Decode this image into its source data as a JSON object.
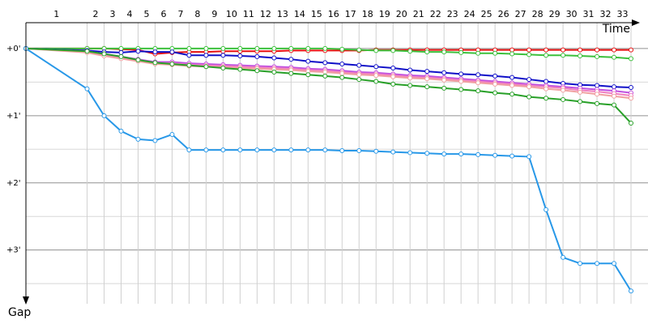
{
  "chart_data": {
    "type": "line",
    "x_label": "Time",
    "y_label": "Gap",
    "x": [
      0,
      3.6,
      4.6,
      5.6,
      6.6,
      7.6,
      8.6,
      9.6,
      10.6,
      11.6,
      12.6,
      13.6,
      14.6,
      15.6,
      16.6,
      17.6,
      18.6,
      19.6,
      20.6,
      21.6,
      22.6,
      23.6,
      24.6,
      25.6,
      26.6,
      27.6,
      28.6,
      29.6,
      30.6,
      31.6,
      32.6,
      33.6,
      34.6,
      35.6
    ],
    "xlim": [
      0,
      36.6
    ],
    "xticks": [
      {
        "value": 3.6,
        "label": "1"
      },
      {
        "value": 4.6,
        "label": "2"
      },
      {
        "value": 5.6,
        "label": "3"
      },
      {
        "value": 6.6,
        "label": "4"
      },
      {
        "value": 7.6,
        "label": "5"
      },
      {
        "value": 8.6,
        "label": "6"
      },
      {
        "value": 9.6,
        "label": "7"
      },
      {
        "value": 10.6,
        "label": "8"
      },
      {
        "value": 11.6,
        "label": "9"
      },
      {
        "value": 12.6,
        "label": "10"
      },
      {
        "value": 13.6,
        "label": "11"
      },
      {
        "value": 14.6,
        "label": "12"
      },
      {
        "value": 15.6,
        "label": "13"
      },
      {
        "value": 16.6,
        "label": "14"
      },
      {
        "value": 17.6,
        "label": "15"
      },
      {
        "value": 18.6,
        "label": "16"
      },
      {
        "value": 19.6,
        "label": "17"
      },
      {
        "value": 20.6,
        "label": "18"
      },
      {
        "value": 21.6,
        "label": "19"
      },
      {
        "value": 22.6,
        "label": "20"
      },
      {
        "value": 23.6,
        "label": "21"
      },
      {
        "value": 24.6,
        "label": "22"
      },
      {
        "value": 25.6,
        "label": "23"
      },
      {
        "value": 26.6,
        "label": "24"
      },
      {
        "value": 27.6,
        "label": "25"
      },
      {
        "value": 28.6,
        "label": "26"
      },
      {
        "value": 29.6,
        "label": "27"
      },
      {
        "value": 30.6,
        "label": "28"
      },
      {
        "value": 31.6,
        "label": "29"
      },
      {
        "value": 32.6,
        "label": "30"
      },
      {
        "value": 33.6,
        "label": "31"
      },
      {
        "value": 34.6,
        "label": "32"
      },
      {
        "value": 35.6,
        "label": "33"
      }
    ],
    "ylim": [
      -0.385,
      3.8
    ],
    "yticks": [
      {
        "value": 0,
        "label": "+0'"
      },
      {
        "value": 1,
        "label": "+1'"
      },
      {
        "value": 2,
        "label": "+2'"
      },
      {
        "value": 3,
        "label": "+3'"
      }
    ],
    "minor_yticks": [
      0.5,
      1.5,
      2.5,
      3.5
    ],
    "series": [
      {
        "color": "#e81010",
        "values": [
          0,
          0,
          0,
          0.01,
          0.02,
          0.08,
          0.06,
          0.05,
          0.05,
          0.04,
          0.04,
          0.04,
          0.04,
          0.03,
          0.03,
          0.03,
          0.03,
          0.03,
          0.02,
          0.02,
          0.02,
          0.02,
          0.02,
          0.02,
          0.02,
          0.02,
          0.02,
          0.02,
          0.02,
          0.02,
          0.02,
          0.02,
          0.02,
          0.02
        ]
      },
      {
        "color": "#3cc03c",
        "values": [
          0,
          0,
          0,
          0,
          0,
          0,
          0,
          0,
          0,
          0,
          0,
          0,
          0,
          0,
          0,
          0,
          0.01,
          0.02,
          0.03,
          0.03,
          0.04,
          0.05,
          0.05,
          0.06,
          0.07,
          0.07,
          0.08,
          0.09,
          0.1,
          0.1,
          0.11,
          0.12,
          0.13,
          0.15
        ]
      },
      {
        "color": "#1010c8",
        "values": [
          0,
          0.03,
          0.05,
          0.06,
          0.04,
          0.05,
          0.05,
          0.1,
          0.1,
          0.1,
          0.11,
          0.12,
          0.14,
          0.16,
          0.19,
          0.21,
          0.23,
          0.25,
          0.27,
          0.29,
          0.32,
          0.34,
          0.36,
          0.38,
          0.39,
          0.41,
          0.43,
          0.46,
          0.49,
          0.52,
          0.54,
          0.55,
          0.57,
          0.58
        ]
      },
      {
        "color": "#c050e0",
        "values": [
          0,
          0.04,
          0.08,
          0.12,
          0.16,
          0.2,
          0.2,
          0.22,
          0.23,
          0.24,
          0.25,
          0.26,
          0.27,
          0.28,
          0.3,
          0.31,
          0.33,
          0.35,
          0.36,
          0.38,
          0.4,
          0.41,
          0.43,
          0.45,
          0.47,
          0.49,
          0.51,
          0.53,
          0.55,
          0.57,
          0.59,
          0.61,
          0.63,
          0.66
        ]
      },
      {
        "color": "#f080c0",
        "values": [
          0,
          0.05,
          0.1,
          0.14,
          0.18,
          0.22,
          0.22,
          0.24,
          0.25,
          0.26,
          0.27,
          0.28,
          0.29,
          0.3,
          0.32,
          0.33,
          0.35,
          0.37,
          0.38,
          0.4,
          0.42,
          0.43,
          0.45,
          0.47,
          0.49,
          0.51,
          0.53,
          0.55,
          0.57,
          0.59,
          0.62,
          0.64,
          0.67,
          0.7
        ]
      },
      {
        "color": "#f0a0a0",
        "values": [
          0,
          0.06,
          0.11,
          0.15,
          0.19,
          0.23,
          0.24,
          0.26,
          0.27,
          0.28,
          0.29,
          0.3,
          0.31,
          0.32,
          0.34,
          0.35,
          0.37,
          0.39,
          0.4,
          0.42,
          0.44,
          0.45,
          0.47,
          0.49,
          0.51,
          0.53,
          0.55,
          0.57,
          0.6,
          0.62,
          0.65,
          0.68,
          0.71,
          0.74
        ]
      },
      {
        "color": "#28a028",
        "values": [
          0,
          0.04,
          0.08,
          0.12,
          0.17,
          0.21,
          0.23,
          0.25,
          0.27,
          0.29,
          0.31,
          0.33,
          0.35,
          0.37,
          0.39,
          0.41,
          0.43,
          0.46,
          0.49,
          0.53,
          0.55,
          0.57,
          0.59,
          0.61,
          0.63,
          0.66,
          0.68,
          0.72,
          0.74,
          0.76,
          0.79,
          0.82,
          0.84,
          1.11
        ]
      },
      {
        "color": "#2898e8",
        "values": [
          0,
          0.6,
          1.0,
          1.23,
          1.35,
          1.37,
          1.28,
          1.51,
          1.51,
          1.51,
          1.51,
          1.51,
          1.51,
          1.51,
          1.51,
          1.51,
          1.52,
          1.52,
          1.53,
          1.54,
          1.55,
          1.56,
          1.57,
          1.57,
          1.58,
          1.59,
          1.6,
          1.61,
          2.4,
          3.11,
          3.2,
          3.2,
          3.2,
          3.61
        ]
      }
    ]
  }
}
